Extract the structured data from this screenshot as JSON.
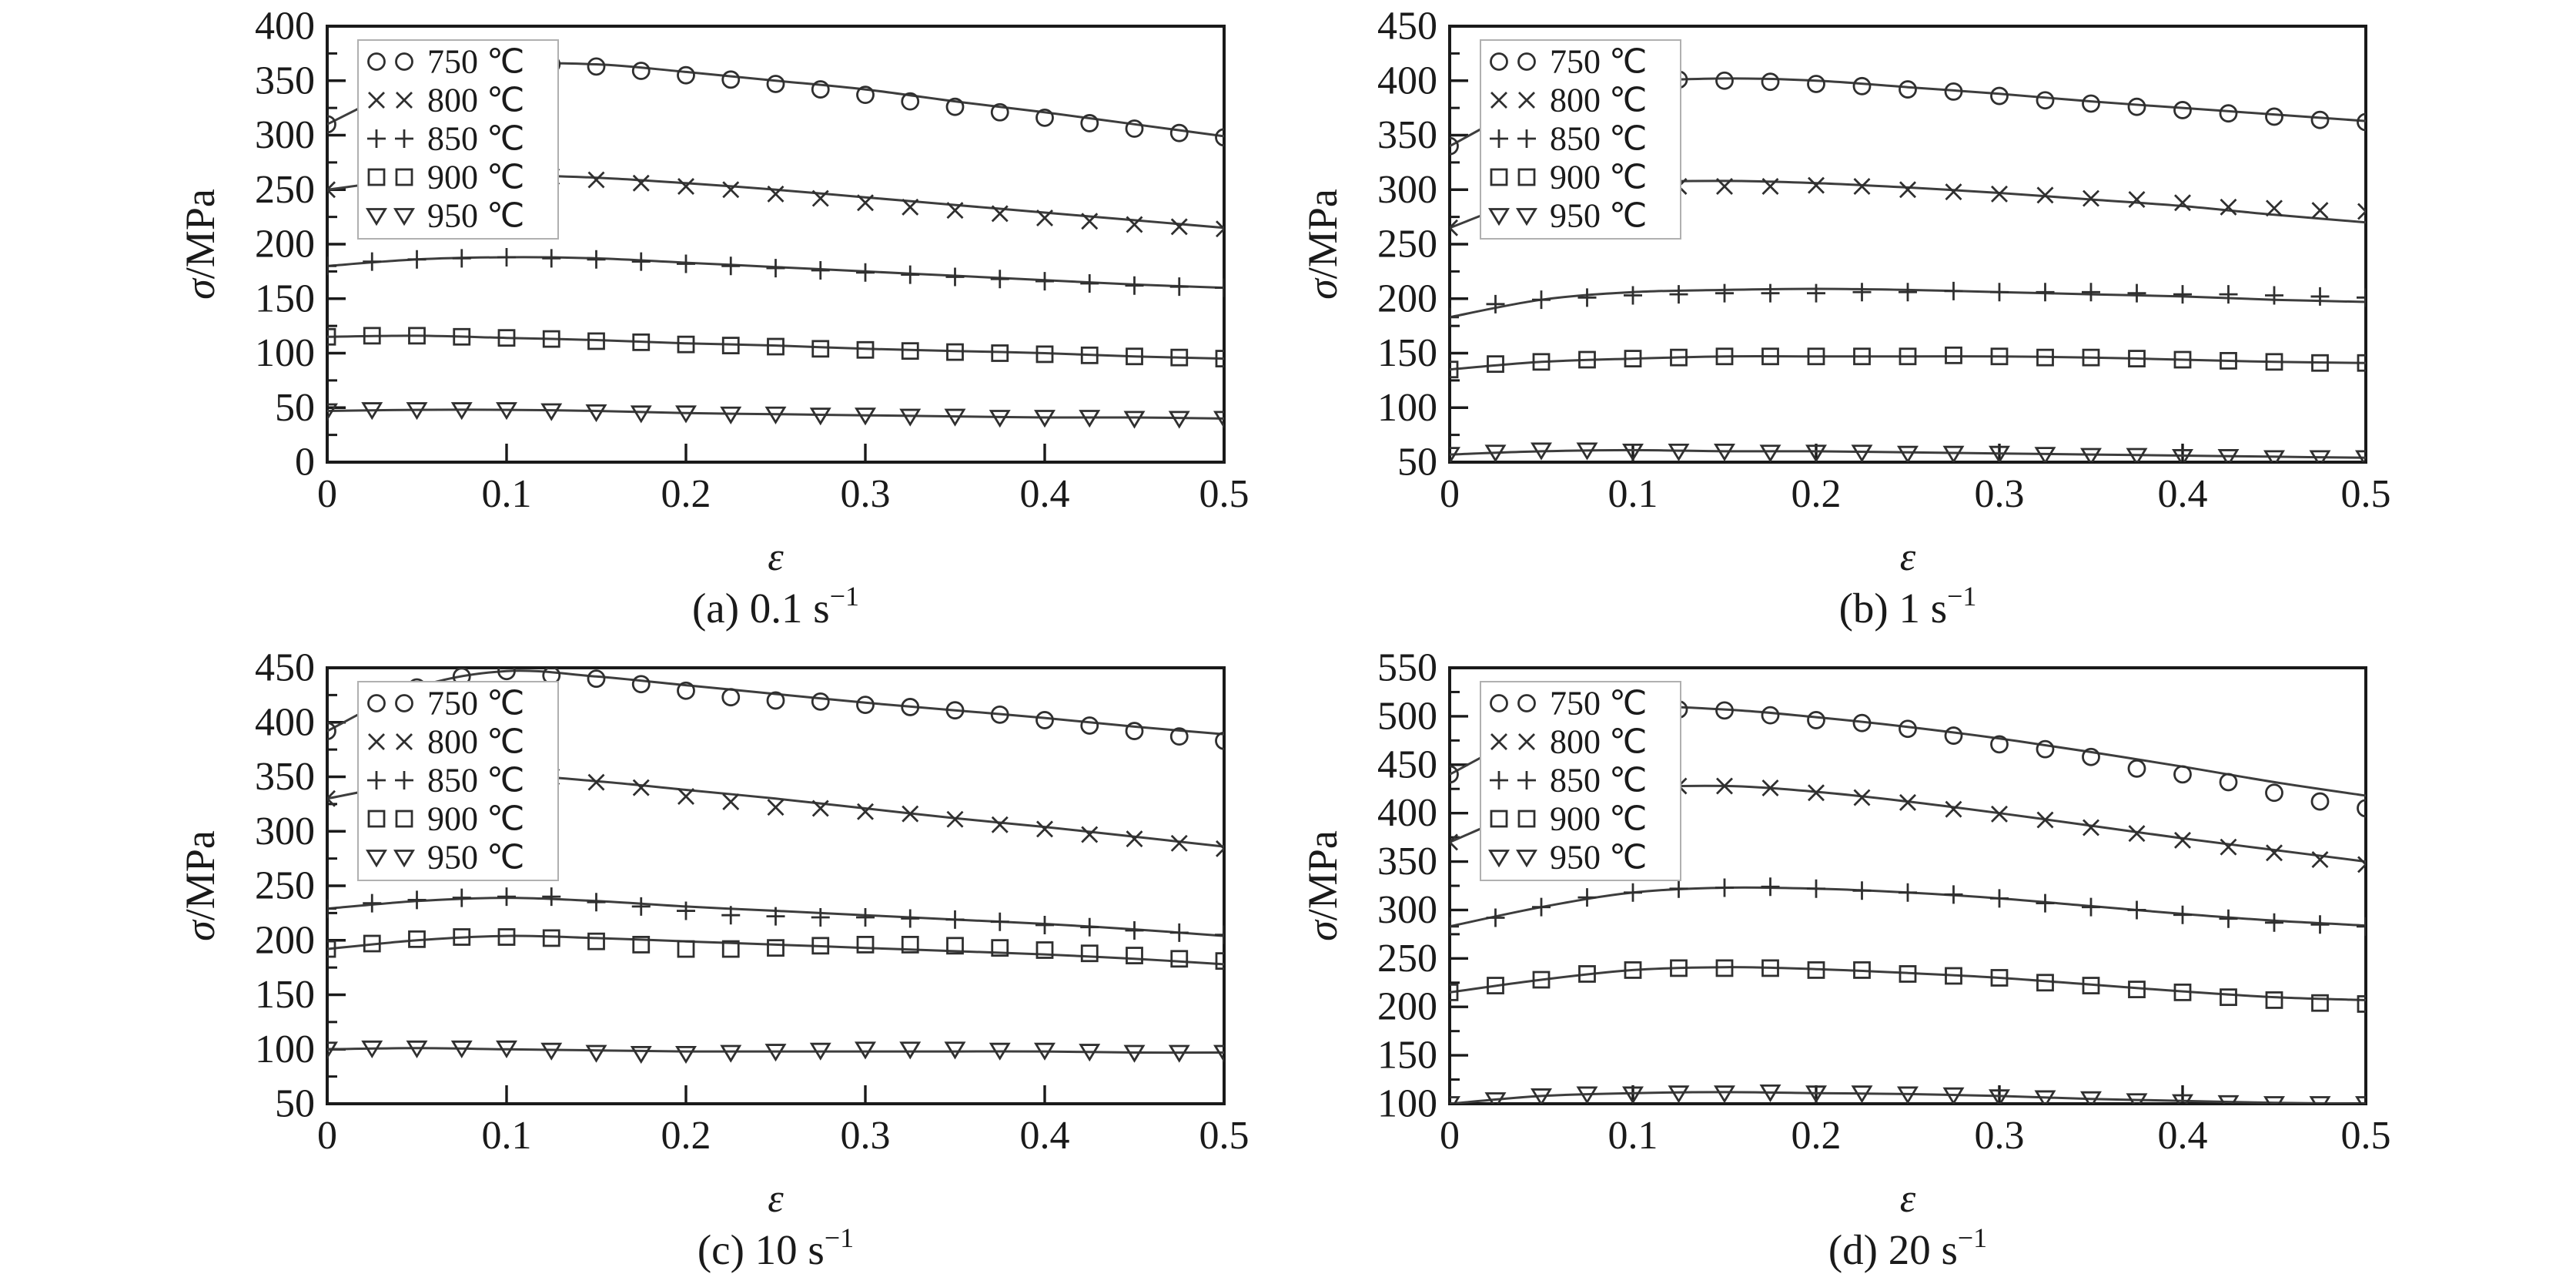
{
  "colors": {
    "ink": "#1a1a1a",
    "curve": "#3d3d3d",
    "marker": "#2f2f2f",
    "legend_border": "#b0b0b0",
    "background": "#ffffff"
  },
  "legend": {
    "items": [
      {
        "label": "750 ℃",
        "marker": "circle"
      },
      {
        "label": "800 ℃",
        "marker": "x"
      },
      {
        "label": "850 ℃",
        "marker": "plus"
      },
      {
        "label": "900 ℃",
        "marker": "square"
      },
      {
        "label": "950 ℃",
        "marker": "triangle-down"
      }
    ]
  },
  "chart_data": [
    {
      "id": "a",
      "type": "line",
      "caption": {
        "text": "(a) 0.1 s",
        "sup": "−1"
      },
      "xlabel": "ε",
      "ylabel_italic": "σ",
      "ylabel_rest": "/MPa",
      "xlim": [
        0,
        0.5
      ],
      "ylim": [
        0,
        400
      ],
      "x_step": 0.025,
      "x_tick_labels": [
        "0",
        "0.1",
        "0.2",
        "0.3",
        "0.4",
        "0.5"
      ],
      "y_tick_labels": [
        "0",
        "50",
        "100",
        "150",
        "200",
        "250",
        "300",
        "350",
        "400"
      ],
      "series": [
        {
          "name": "750 ℃",
          "marker": "circle",
          "line": [
            310,
            348,
            364,
            365,
            358,
            350,
            342,
            331,
            321,
            310,
            299
          ],
          "points": [
            310,
            332,
            350,
            361,
            365,
            365,
            363,
            359,
            355,
            351,
            347,
            342,
            337,
            331,
            326,
            321,
            316,
            311,
            306,
            302,
            298
          ]
        },
        {
          "name": "800 ℃",
          "marker": "x",
          "line": [
            250,
            260,
            263,
            261,
            256,
            250,
            243,
            236,
            229,
            222,
            215
          ],
          "points": [
            250,
            257,
            261,
            263,
            263,
            262,
            259,
            256,
            253,
            250,
            246,
            242,
            238,
            234,
            231,
            228,
            224,
            221,
            218,
            216,
            214
          ]
        },
        {
          "name": "850 ℃",
          "marker": "plus",
          "line": [
            180,
            186,
            188,
            187,
            183,
            179,
            175,
            171,
            167,
            163,
            160
          ],
          "points": [
            180,
            184,
            186,
            187,
            188,
            187,
            186,
            184,
            182,
            180,
            178,
            176,
            174,
            172,
            170,
            168,
            166,
            164,
            162,
            161,
            160
          ]
        },
        {
          "name": "900 ℃",
          "marker": "square",
          "line": [
            115,
            116,
            114,
            112,
            109,
            107,
            104,
            102,
            100,
            97,
            95
          ],
          "points": [
            115,
            116,
            116,
            115,
            114,
            113,
            111,
            110,
            108,
            107,
            106,
            104,
            103,
            102,
            101,
            100,
            99,
            98,
            97,
            96,
            95
          ]
        },
        {
          "name": "950 ℃",
          "marker": "triangle-down",
          "line": [
            47,
            48,
            48,
            47,
            45,
            44,
            43,
            42,
            41,
            41,
            40
          ],
          "points": [
            47,
            48,
            48,
            48,
            48,
            47,
            46,
            45,
            45,
            44,
            44,
            43,
            43,
            42,
            42,
            41,
            41,
            41,
            40,
            40,
            40
          ]
        }
      ]
    },
    {
      "id": "b",
      "type": "line",
      "caption": {
        "text": "(b) 1 s",
        "sup": "−1"
      },
      "xlabel": "ε",
      "ylabel_italic": "σ",
      "ylabel_rest": "/MPa",
      "xlim": [
        0,
        0.5
      ],
      "ylim": [
        50,
        450
      ],
      "x_step": 0.025,
      "x_tick_labels": [
        "0",
        "0.1",
        "0.2",
        "0.3",
        "0.4",
        "0.5"
      ],
      "y_tick_labels": [
        "50",
        "100",
        "150",
        "200",
        "250",
        "300",
        "350",
        "400",
        "450"
      ],
      "series": [
        {
          "name": "750 ℃",
          "marker": "circle",
          "line": [
            340,
            382,
            398,
            402,
            400,
            394,
            388,
            381,
            375,
            369,
            363
          ],
          "points": [
            340,
            365,
            385,
            395,
            400,
            401,
            400,
            399,
            397,
            395,
            392,
            390,
            386,
            382,
            379,
            376,
            373,
            370,
            367,
            364,
            362
          ]
        },
        {
          "name": "800 ℃",
          "marker": "x",
          "line": [
            265,
            295,
            306,
            308,
            306,
            302,
            297,
            291,
            285,
            277,
            270
          ],
          "points": [
            265,
            283,
            295,
            301,
            303,
            303,
            303,
            303,
            304,
            303,
            300,
            298,
            296,
            295,
            292,
            291,
            288,
            284,
            283,
            281,
            280
          ]
        },
        {
          "name": "850 ℃",
          "marker": "plus",
          "line": [
            183,
            199,
            206,
            208,
            209,
            208,
            206,
            204,
            202,
            199,
            197
          ],
          "points": [
            183,
            195,
            199,
            201,
            203,
            204,
            205,
            205,
            205,
            206,
            206,
            207,
            206,
            206,
            206,
            205,
            204,
            204,
            203,
            202,
            201
          ]
        },
        {
          "name": "900 ℃",
          "marker": "square",
          "line": [
            135,
            142,
            145,
            147,
            147,
            147,
            147,
            146,
            144,
            142,
            141
          ],
          "points": [
            135,
            140,
            142,
            144,
            145,
            146,
            147,
            147,
            147,
            147,
            147,
            148,
            147,
            146,
            146,
            145,
            144,
            143,
            142,
            141,
            141
          ]
        },
        {
          "name": "950 ℃",
          "marker": "triangle-down",
          "line": [
            57,
            60,
            61,
            60,
            60,
            59,
            58,
            57,
            56,
            55,
            54
          ],
          "points": [
            57,
            59,
            61,
            61,
            60,
            60,
            60,
            59,
            59,
            59,
            58,
            58,
            58,
            57,
            56,
            56,
            55,
            55,
            54,
            54,
            54
          ]
        }
      ]
    },
    {
      "id": "c",
      "type": "line",
      "caption": {
        "text": "(c) 10 s",
        "sup": "−1"
      },
      "xlabel": "ε",
      "ylabel_italic": "σ",
      "ylabel_rest": "/MPa",
      "xlim": [
        0,
        0.5
      ],
      "ylim": [
        50,
        450
      ],
      "x_step": 0.025,
      "x_tick_labels": [
        "0",
        "0.1",
        "0.2",
        "0.3",
        "0.4",
        "0.5"
      ],
      "y_tick_labels": [
        "50",
        "100",
        "150",
        "200",
        "250",
        "300",
        "350",
        "400",
        "450"
      ],
      "series": [
        {
          "name": "750 ℃",
          "marker": "circle",
          "line": [
            392,
            432,
            447,
            442,
            434,
            426,
            418,
            411,
            404,
            396,
            389
          ],
          "points": [
            392,
            415,
            432,
            442,
            447,
            443,
            440,
            435,
            429,
            423,
            420,
            419,
            416,
            414,
            411,
            407,
            402,
            397,
            392,
            387,
            383
          ]
        },
        {
          "name": "800 ℃",
          "marker": "x",
          "line": [
            330,
            345,
            351,
            346,
            338,
            330,
            321,
            312,
            304,
            295,
            286
          ],
          "points": [
            330,
            339,
            345,
            349,
            351,
            350,
            345,
            340,
            332,
            327,
            322,
            321,
            318,
            316,
            311,
            306,
            302,
            297,
            293,
            289,
            284
          ]
        },
        {
          "name": "850 ℃",
          "marker": "plus",
          "line": [
            229,
            236,
            239,
            236,
            231,
            227,
            223,
            219,
            215,
            210,
            204
          ],
          "points": [
            229,
            234,
            237,
            239,
            240,
            240,
            235,
            231,
            227,
            223,
            222,
            221,
            221,
            220,
            219,
            217,
            214,
            212,
            209,
            207,
            205
          ]
        },
        {
          "name": "900 ℃",
          "marker": "square",
          "line": [
            192,
            200,
            204,
            202,
            199,
            196,
            193,
            190,
            187,
            183,
            178
          ],
          "points": [
            192,
            197,
            201,
            203,
            203,
            202,
            199,
            196,
            192,
            192,
            193,
            195,
            196,
            196,
            195,
            193,
            191,
            188,
            186,
            183,
            181
          ]
        },
        {
          "name": "950 ℃",
          "marker": "triangle-down",
          "line": [
            100,
            101,
            100,
            99,
            98,
            98,
            98,
            98,
            98,
            97,
            97
          ],
          "points": [
            100,
            101,
            101,
            101,
            101,
            99,
            97,
            96,
            96,
            97,
            98,
            99,
            100,
            100,
            100,
            99,
            99,
            98,
            97,
            97,
            97
          ]
        }
      ]
    },
    {
      "id": "d",
      "type": "line",
      "caption": {
        "text": "(d) 20 s",
        "sup": "−1"
      },
      "xlabel": "ε",
      "ylabel_italic": "σ",
      "ylabel_rest": "/MPa",
      "xlim": [
        0,
        0.5
      ],
      "ylim": [
        100,
        550
      ],
      "x_step": 0.025,
      "x_tick_labels": [
        "0",
        "0.1",
        "0.2",
        "0.3",
        "0.4",
        "0.5"
      ],
      "y_tick_labels": [
        "100",
        "150",
        "200",
        "250",
        "300",
        "350",
        "400",
        "450",
        "500",
        "550"
      ],
      "series": [
        {
          "name": "750 ℃",
          "marker": "circle",
          "line": [
            440,
            487,
            508,
            507,
            499,
            489,
            477,
            463,
            448,
            432,
            418
          ],
          "points": [
            440,
            465,
            487,
            500,
            507,
            507,
            506,
            501,
            496,
            493,
            487,
            480,
            471,
            466,
            458,
            446,
            440,
            432,
            421,
            412,
            405
          ]
        },
        {
          "name": "800 ℃",
          "marker": "x",
          "line": [
            370,
            408,
            425,
            428,
            422,
            412,
            400,
            387,
            374,
            362,
            350
          ],
          "points": [
            370,
            390,
            408,
            418,
            425,
            428,
            428,
            426,
            421,
            416,
            411,
            404,
            399,
            393,
            385,
            379,
            372,
            365,
            359,
            352,
            347
          ]
        },
        {
          "name": "850 ℃",
          "marker": "plus",
          "line": [
            283,
            303,
            318,
            323,
            322,
            318,
            312,
            304,
            296,
            289,
            284
          ],
          "points": [
            283,
            292,
            303,
            313,
            318,
            322,
            323,
            324,
            322,
            320,
            318,
            316,
            312,
            307,
            303,
            300,
            295,
            291,
            287,
            285,
            283
          ]
        },
        {
          "name": "900 ℃",
          "marker": "square",
          "line": [
            215,
            228,
            238,
            241,
            239,
            235,
            230,
            223,
            216,
            210,
            207
          ],
          "points": [
            215,
            222,
            228,
            234,
            238,
            240,
            240,
            240,
            238,
            238,
            234,
            232,
            230,
            225,
            222,
            218,
            215,
            210,
            207,
            204,
            203
          ]
        },
        {
          "name": "950 ℃",
          "marker": "triangle-down",
          "line": [
            100,
            108,
            111,
            112,
            111,
            110,
            108,
            105,
            103,
            101,
            100
          ],
          "points": [
            100,
            104,
            108,
            110,
            110,
            111,
            111,
            112,
            111,
            111,
            110,
            109,
            107,
            106,
            105,
            103,
            102,
            101,
            100,
            100,
            100
          ]
        }
      ]
    }
  ]
}
